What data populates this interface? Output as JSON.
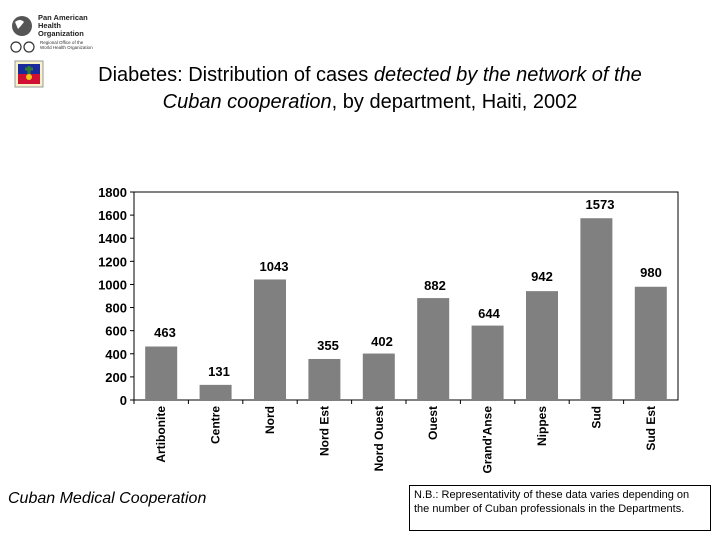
{
  "header": {
    "org_name": "Pan American Health Organization",
    "org_lines": [
      "Pan American",
      "Health",
      "Organization"
    ],
    "org_sub_lines": [
      "Regional Office of the",
      "World Health Organization"
    ]
  },
  "title": {
    "part1": "Diabetes: Distribution of cases ",
    "part2_italic": "detected by the network of the Cuban cooperation",
    "part3": ", by department, Haiti, 2002"
  },
  "chart_data": {
    "type": "bar",
    "title": "Diabetes: Distribution of cases detected by the network of the Cuban cooperation, by department, Haiti, 2002",
    "categories": [
      "Artibonite",
      "Centre",
      "Nord",
      "Nord Est",
      "Nord Ouest",
      "Ouest",
      "Grand'Anse",
      "Nippes",
      "Sud",
      "Sud Est"
    ],
    "values": [
      463,
      131,
      1043,
      355,
      402,
      882,
      644,
      942,
      1573,
      980
    ],
    "data_labels": [
      "463",
      "131",
      "1043",
      "355",
      "402",
      "882",
      "644",
      "942",
      "1573",
      "980"
    ],
    "yticks": [
      "0",
      "200",
      "400",
      "600",
      "800",
      "1000",
      "1200",
      "1400",
      "1600",
      "1800"
    ],
    "ylim": [
      0,
      1800
    ],
    "xlabel": "",
    "ylabel": "",
    "grid": false,
    "bar_color": "#808080"
  },
  "footer": {
    "left_text": "Cuban Medical Cooperation",
    "note": "N.B.: Representativity of these data varies depending on the number of Cuban professionals in the Departments."
  }
}
